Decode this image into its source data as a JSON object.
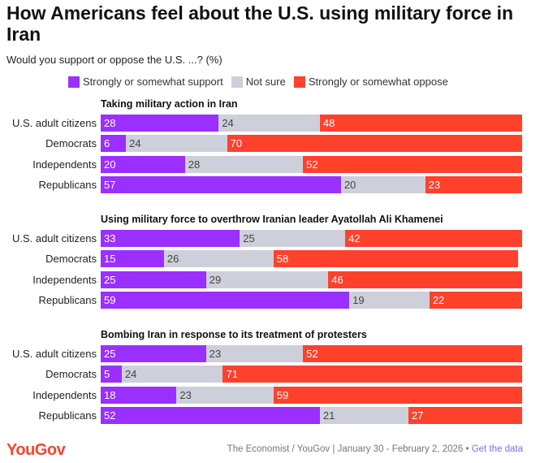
{
  "chart_data": {
    "type": "bar",
    "stacked": true,
    "orientation": "horizontal",
    "title": "How Americans feel about the U.S. using military force in Iran",
    "subtitle": "Would you support or oppose the U.S. ...? (%)",
    "legend": [
      {
        "name": "Strongly or somewhat support",
        "color": "#9b2fff"
      },
      {
        "name": "Not sure",
        "color": "#cdd0da"
      },
      {
        "name": "Strongly or somewhat oppose",
        "color": "#ff412c"
      }
    ],
    "categories": [
      "U.S. adult citizens",
      "Democrats",
      "Independents",
      "Republicans"
    ],
    "panels": [
      {
        "title": "Taking military action in Iran",
        "values": [
          [
            28,
            24,
            48
          ],
          [
            6,
            24,
            70
          ],
          [
            20,
            28,
            52
          ],
          [
            57,
            20,
            23
          ]
        ]
      },
      {
        "title": "Using military force to overthrow Iranian leader Ayatollah Ali Khamenei",
        "values": [
          [
            33,
            25,
            42
          ],
          [
            15,
            26,
            58
          ],
          [
            25,
            29,
            46
          ],
          [
            59,
            19,
            22
          ]
        ]
      },
      {
        "title": "Bombing Iran in response to its treatment of protesters",
        "values": [
          [
            25,
            23,
            52
          ],
          [
            5,
            24,
            71
          ],
          [
            18,
            23,
            59
          ],
          [
            52,
            21,
            27
          ]
        ]
      }
    ],
    "xlim": [
      0,
      100
    ]
  },
  "footer": {
    "logo": "YouGov",
    "source": "The Economist / YouGov | January 30 - February 2, 2026 • ",
    "link": "Get the data"
  }
}
